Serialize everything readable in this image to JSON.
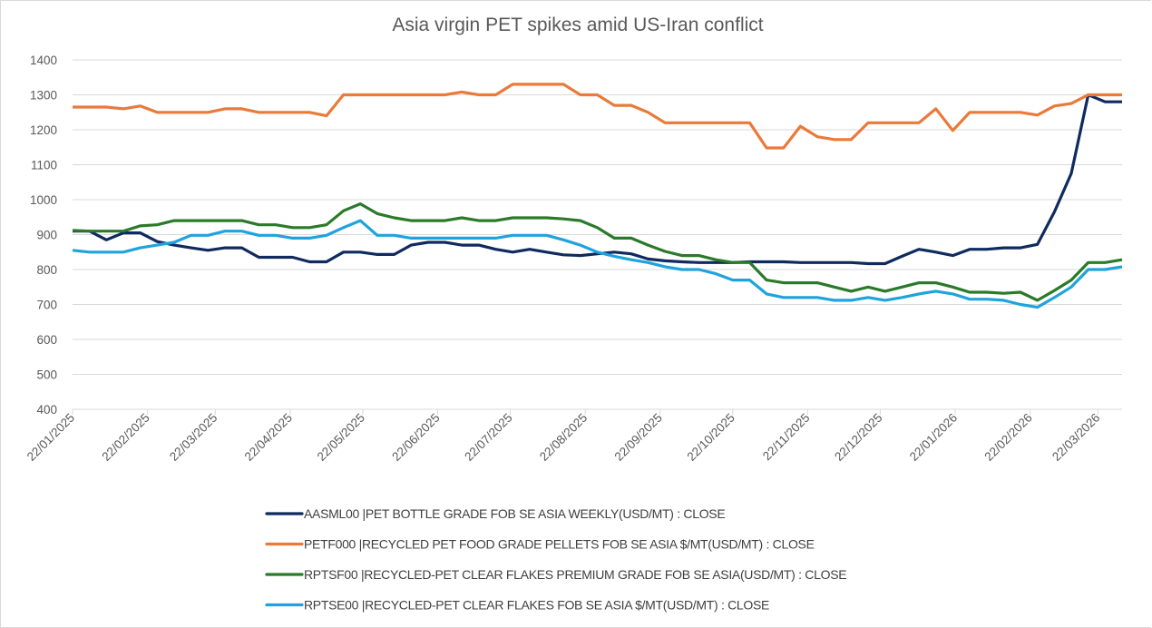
{
  "chart_data": {
    "type": "line",
    "title": "Asia virgin PET spikes amid US-Iran conflict",
    "xlabel": "",
    "ylabel": "",
    "ylim": [
      400,
      1400
    ],
    "yticks": [
      400,
      500,
      600,
      700,
      800,
      900,
      1000,
      1100,
      1200,
      1300,
      1400
    ],
    "grid": "horizontal",
    "legend_position": "bottom",
    "xtick_labels": [
      "22/01/2025",
      "22/02/2025",
      "22/03/2025",
      "22/04/2025",
      "22/05/2025",
      "22/06/2025",
      "22/07/2025",
      "22/08/2025",
      "22/09/2025",
      "22/10/2025",
      "22/11/2025",
      "22/12/2025",
      "22/01/2026",
      "22/02/2026",
      "22/03/2026"
    ],
    "x": [
      "2025-01-22",
      "2025-01-29",
      "2025-02-05",
      "2025-02-12",
      "2025-02-19",
      "2025-02-26",
      "2025-03-05",
      "2025-03-12",
      "2025-03-19",
      "2025-03-26",
      "2025-04-02",
      "2025-04-09",
      "2025-04-16",
      "2025-04-23",
      "2025-04-30",
      "2025-05-07",
      "2025-05-14",
      "2025-05-21",
      "2025-05-28",
      "2025-06-04",
      "2025-06-11",
      "2025-06-18",
      "2025-06-25",
      "2025-07-02",
      "2025-07-09",
      "2025-07-16",
      "2025-07-23",
      "2025-07-30",
      "2025-08-06",
      "2025-08-13",
      "2025-08-20",
      "2025-08-27",
      "2025-09-03",
      "2025-09-10",
      "2025-09-17",
      "2025-09-24",
      "2025-10-01",
      "2025-10-08",
      "2025-10-15",
      "2025-10-22",
      "2025-10-29",
      "2025-11-05",
      "2025-11-12",
      "2025-11-19",
      "2025-11-26",
      "2025-12-03",
      "2025-12-10",
      "2025-12-17",
      "2025-12-24",
      "2025-12-31",
      "2026-01-07",
      "2026-01-14",
      "2026-01-21",
      "2026-01-28",
      "2026-02-04",
      "2026-02-11",
      "2026-02-18",
      "2026-02-25",
      "2026-03-04",
      "2026-03-11",
      "2026-03-18",
      "2026-03-25",
      "2026-04-01"
    ],
    "series": [
      {
        "name": "AASML00 |PET BOTTLE GRADE FOB SE ASIA WEEKLY(USD/MT) : CLOSE",
        "color": "#0f2a5e",
        "values": [
          910,
          910,
          885,
          905,
          905,
          880,
          870,
          862,
          855,
          862,
          862,
          835,
          835,
          835,
          822,
          822,
          850,
          850,
          843,
          843,
          870,
          878,
          878,
          870,
          870,
          858,
          850,
          858,
          850,
          842,
          840,
          845,
          850,
          845,
          830,
          825,
          822,
          820,
          820,
          820,
          822,
          822,
          822,
          820,
          820,
          820,
          820,
          817,
          817,
          838,
          858,
          850,
          840,
          858,
          858,
          862,
          862,
          872,
          965,
          1075,
          1300,
          1280,
          1280
        ]
      },
      {
        "name": "PETF000 |RECYCLED PET FOOD GRADE PELLETS FOB SE ASIA $/MT(USD/MT) : CLOSE",
        "color": "#e97a3a",
        "values": [
          1265,
          1265,
          1265,
          1260,
          1268,
          1250,
          1250,
          1250,
          1250,
          1260,
          1260,
          1250,
          1250,
          1250,
          1250,
          1240,
          1300,
          1300,
          1300,
          1300,
          1300,
          1300,
          1300,
          1308,
          1300,
          1300,
          1330,
          1330,
          1330,
          1330,
          1300,
          1300,
          1270,
          1270,
          1250,
          1220,
          1220,
          1220,
          1220,
          1220,
          1220,
          1148,
          1148,
          1210,
          1180,
          1172,
          1172,
          1220,
          1220,
          1220,
          1220,
          1260,
          1198,
          1250,
          1250,
          1250,
          1250,
          1242,
          1268,
          1275,
          1300,
          1300,
          1300
        ]
      },
      {
        "name": "RPTSF00 |RECYCLED-PET CLEAR FLAKES PREMIUM GRADE FOB SE ASIA(USD/MT) : CLOSE",
        "color": "#2a7a2a",
        "values": [
          912,
          910,
          910,
          910,
          925,
          928,
          940,
          940,
          940,
          940,
          940,
          928,
          928,
          920,
          920,
          928,
          968,
          988,
          960,
          948,
          940,
          940,
          940,
          948,
          940,
          940,
          948,
          948,
          948,
          945,
          940,
          920,
          890,
          890,
          870,
          852,
          840,
          840,
          828,
          820,
          820,
          770,
          762,
          762,
          762,
          750,
          738,
          750,
          738,
          750,
          762,
          762,
          750,
          735,
          735,
          732,
          735,
          712,
          740,
          770,
          820,
          820,
          828
        ]
      },
      {
        "name": "RPTSE00 |RECYCLED-PET CLEAR FLAKES FOB SE ASIA $/MT(USD/MT) : CLOSE",
        "color": "#1fa3dc",
        "values": [
          855,
          850,
          850,
          850,
          862,
          870,
          878,
          898,
          898,
          910,
          910,
          898,
          898,
          890,
          890,
          898,
          920,
          940,
          898,
          898,
          890,
          890,
          890,
          890,
          890,
          890,
          898,
          898,
          898,
          885,
          870,
          850,
          838,
          828,
          820,
          808,
          800,
          800,
          788,
          770,
          770,
          730,
          720,
          720,
          720,
          712,
          712,
          720,
          712,
          720,
          730,
          738,
          730,
          715,
          715,
          712,
          700,
          692,
          720,
          750,
          800,
          800,
          808
        ]
      }
    ]
  }
}
